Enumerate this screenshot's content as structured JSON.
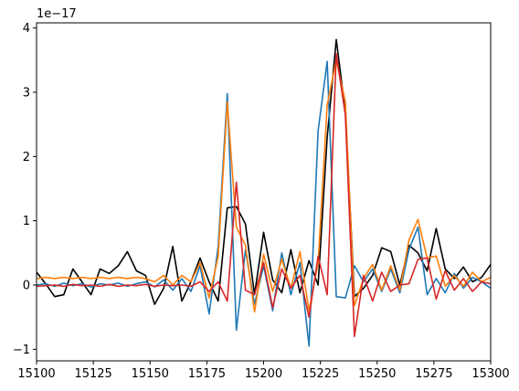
{
  "chart_data": {
    "type": "line",
    "title": "",
    "xlabel": "",
    "ylabel": "",
    "y_offset_label": "1e−17",
    "xlim": [
      15100,
      15300
    ],
    "ylim": [
      -1.18,
      4.08
    ],
    "grid": false,
    "x_ticks": [
      15100,
      15125,
      15150,
      15175,
      15200,
      15225,
      15250,
      15275,
      15300
    ],
    "x_tick_labels": [
      "15100",
      "15125",
      "15150",
      "15175",
      "15200",
      "15225",
      "15250",
      "15275",
      "15300"
    ],
    "y_ticks": [
      -1,
      0,
      1,
      2,
      3,
      4
    ],
    "y_tick_labels": [
      "−1",
      "0",
      "1",
      "2",
      "3",
      "4"
    ],
    "series": [
      {
        "color": "#000000",
        "x": [
          15100,
          15104,
          15108,
          15112,
          15116,
          15120,
          15124,
          15128,
          15132,
          15136,
          15140,
          15144,
          15148,
          15152,
          15156,
          15160,
          15164,
          15168,
          15172,
          15176,
          15180,
          15184,
          15188,
          15192,
          15196,
          15200,
          15204,
          15208,
          15212,
          15216,
          15220,
          15224,
          15228,
          15232,
          15236,
          15240,
          15244,
          15248,
          15252,
          15256,
          15260,
          15264,
          15268,
          15272,
          15276,
          15280,
          15284,
          15288,
          15292,
          15296,
          15300
        ],
        "y": [
          0.2,
          0.02,
          -0.18,
          -0.15,
          0.25,
          0.05,
          -0.15,
          0.25,
          0.18,
          0.3,
          0.52,
          0.22,
          0.15,
          -0.3,
          -0.05,
          0.6,
          -0.25,
          0.05,
          0.42,
          0.05,
          -0.25,
          1.2,
          1.22,
          0.95,
          -0.15,
          0.82,
          0.08,
          -0.12,
          0.55,
          -0.12,
          0.38,
          0.0,
          2.3,
          3.82,
          2.7,
          -0.18,
          -0.05,
          0.15,
          0.58,
          0.52,
          0.0,
          0.62,
          0.5,
          0.22,
          0.88,
          0.25,
          0.1,
          0.28,
          0.05,
          0.12,
          0.32
        ]
      },
      {
        "color": "#1f77b4",
        "x": [
          15100,
          15104,
          15108,
          15112,
          15116,
          15120,
          15124,
          15128,
          15132,
          15136,
          15140,
          15144,
          15148,
          15152,
          15156,
          15160,
          15164,
          15168,
          15172,
          15176,
          15180,
          15184,
          15188,
          15192,
          15196,
          15200,
          15204,
          15208,
          15212,
          15216,
          15220,
          15224,
          15228,
          15232,
          15236,
          15240,
          15244,
          15248,
          15252,
          15256,
          15260,
          15264,
          15268,
          15272,
          15276,
          15280,
          15284,
          15288,
          15292,
          15296,
          15300
        ],
        "y": [
          0.0,
          0.02,
          -0.02,
          0.03,
          -0.01,
          0.02,
          -0.03,
          0.02,
          0.0,
          0.03,
          -0.02,
          0.02,
          0.05,
          -0.03,
          0.08,
          -0.08,
          0.1,
          -0.1,
          0.3,
          -0.45,
          0.6,
          2.98,
          -0.7,
          0.55,
          -0.3,
          0.3,
          -0.4,
          0.5,
          -0.15,
          0.35,
          -0.95,
          2.4,
          3.48,
          -0.18,
          -0.2,
          0.3,
          0.05,
          0.25,
          -0.1,
          0.25,
          -0.12,
          0.55,
          0.9,
          -0.15,
          0.1,
          -0.12,
          0.18,
          -0.05,
          0.12,
          0.05,
          -0.05
        ]
      },
      {
        "color": "#ff7f0e",
        "x": [
          15100,
          15104,
          15108,
          15112,
          15116,
          15120,
          15124,
          15128,
          15132,
          15136,
          15140,
          15144,
          15148,
          15152,
          15156,
          15160,
          15164,
          15168,
          15172,
          15176,
          15180,
          15184,
          15188,
          15192,
          15196,
          15200,
          15204,
          15208,
          15212,
          15216,
          15220,
          15224,
          15228,
          15232,
          15236,
          15240,
          15244,
          15248,
          15252,
          15256,
          15260,
          15264,
          15268,
          15272,
          15276,
          15280,
          15284,
          15288,
          15292,
          15296,
          15300
        ],
        "y": [
          0.1,
          0.12,
          0.1,
          0.12,
          0.1,
          0.12,
          0.1,
          0.12,
          0.1,
          0.12,
          0.1,
          0.12,
          0.1,
          0.05,
          0.15,
          0.0,
          0.15,
          0.05,
          0.35,
          -0.2,
          0.45,
          2.85,
          0.9,
          0.62,
          -0.42,
          0.48,
          -0.1,
          0.4,
          -0.05,
          0.52,
          -0.4,
          0.35,
          2.8,
          3.5,
          2.85,
          -0.32,
          0.1,
          0.32,
          -0.08,
          0.3,
          -0.08,
          0.7,
          1.02,
          0.42,
          0.45,
          -0.02,
          0.15,
          -0.02,
          0.2,
          0.05,
          0.12
        ]
      },
      {
        "color": "#d62728",
        "x": [
          15100,
          15104,
          15108,
          15112,
          15116,
          15120,
          15124,
          15128,
          15132,
          15136,
          15140,
          15144,
          15148,
          15152,
          15156,
          15160,
          15164,
          15168,
          15172,
          15176,
          15180,
          15184,
          15188,
          15192,
          15196,
          15200,
          15204,
          15208,
          15212,
          15216,
          15220,
          15224,
          15228,
          15232,
          15236,
          15240,
          15244,
          15248,
          15252,
          15256,
          15260,
          15264,
          15268,
          15272,
          15276,
          15280,
          15284,
          15288,
          15292,
          15296,
          15300
        ],
        "y": [
          -0.02,
          -0.01,
          0.0,
          -0.02,
          0.01,
          -0.01,
          0.0,
          -0.02,
          0.01,
          -0.02,
          0.0,
          -0.01,
          0.01,
          -0.02,
          0.0,
          -0.01,
          0.0,
          -0.02,
          0.05,
          -0.1,
          0.05,
          -0.25,
          1.6,
          -0.08,
          -0.15,
          0.35,
          -0.35,
          0.25,
          -0.05,
          0.15,
          -0.5,
          0.45,
          -0.15,
          3.6,
          2.65,
          -0.8,
          0.15,
          -0.25,
          0.2,
          -0.1,
          0.0,
          0.02,
          0.4,
          0.42,
          -0.22,
          0.22,
          -0.08,
          0.1,
          -0.1,
          0.05,
          0.02
        ]
      }
    ]
  }
}
